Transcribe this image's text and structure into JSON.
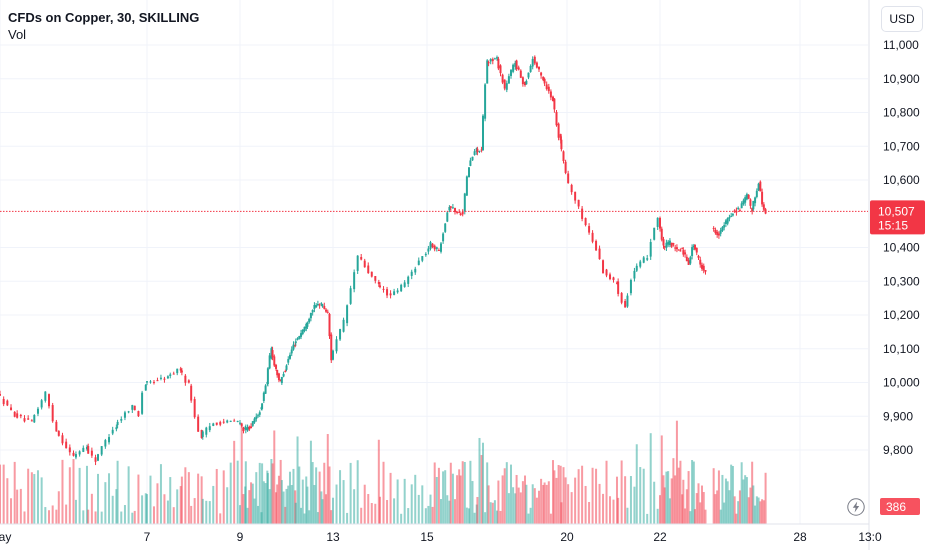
{
  "header": {
    "title": "CFDs on Copper, 30, SKILLING",
    "volume_label": "Vol"
  },
  "currency_button": "USD",
  "colors": {
    "up": "#26a69a",
    "down": "#f23645",
    "grid": "#f0f3fa",
    "text": "#131722",
    "price_line": "#f23645"
  },
  "icons": {
    "replay": "lightning-icon"
  },
  "chart_data": {
    "type": "candlestick",
    "symbol": "CFDs on Copper",
    "interval": "30",
    "source": "SKILLING",
    "currency": "USD",
    "ylim": [
      9700,
      11050
    ],
    "y_ticks": [
      11000,
      10900,
      10800,
      10700,
      10600,
      10400,
      10300,
      10200,
      10100,
      10000,
      9900,
      9800
    ],
    "y_tick_labels": [
      "11,000",
      "10,900",
      "10,800",
      "10,700",
      "10,600",
      "10,400",
      "10,300",
      "10,200",
      "10,100",
      "10,000",
      "9,900",
      "9,800"
    ],
    "x_ticks": [
      {
        "label": "May",
        "day": 4.0
      },
      {
        "label": "7",
        "day": 7.0
      },
      {
        "label": "9",
        "day": 9.0
      },
      {
        "label": "13",
        "day": 13.0
      },
      {
        "label": "15",
        "day": 15.0
      },
      {
        "label": "20",
        "day": 20.0
      },
      {
        "label": "22",
        "day": 22.0
      },
      {
        "label": "28",
        "day": 28.0
      },
      {
        "label": "13:0",
        "day": 29.6
      }
    ],
    "last_price": {
      "value": 10507,
      "label": "10,507",
      "countdown": "15:15"
    },
    "last_volume": {
      "value": 386,
      "label": "386"
    },
    "price_path": [
      [
        4.0,
        9970
      ],
      [
        4.35,
        9905
      ],
      [
        4.7,
        9880
      ],
      [
        5.0,
        9970
      ],
      [
        5.2,
        9860
      ],
      [
        5.55,
        9780
      ],
      [
        5.8,
        9810
      ],
      [
        6.0,
        9770
      ],
      [
        6.4,
        9870
      ],
      [
        6.75,
        9930
      ],
      [
        6.9,
        9905
      ],
      [
        7.0,
        9995
      ],
      [
        7.5,
        10015
      ],
      [
        7.75,
        10040
      ],
      [
        7.95,
        9995
      ],
      [
        8.2,
        9840
      ],
      [
        8.5,
        9880
      ],
      [
        9.0,
        9885
      ],
      [
        9.25,
        9860
      ],
      [
        9.55,
        9870
      ],
      [
        9.95,
        9920
      ],
      [
        10.2,
        10000
      ],
      [
        10.4,
        10100
      ],
      [
        10.6,
        10040
      ],
      [
        10.8,
        10000
      ],
      [
        11.0,
        10040
      ],
      [
        11.4,
        10115
      ],
      [
        11.9,
        10170
      ],
      [
        12.2,
        10220
      ],
      [
        12.55,
        10235
      ],
      [
        12.85,
        10205
      ],
      [
        13.0,
        10070
      ],
      [
        13.3,
        10180
      ],
      [
        13.6,
        10375
      ],
      [
        14.0,
        10290
      ],
      [
        14.3,
        10255
      ],
      [
        14.6,
        10295
      ],
      [
        14.9,
        10360
      ],
      [
        15.2,
        10410
      ],
      [
        15.5,
        10390
      ],
      [
        15.85,
        10525
      ],
      [
        16.2,
        10500
      ],
      [
        16.35,
        10505
      ],
      [
        16.55,
        10640
      ],
      [
        16.8,
        10690
      ],
      [
        17.0,
        10685
      ],
      [
        17.2,
        10950
      ],
      [
        17.55,
        10960
      ],
      [
        17.85,
        10870
      ],
      [
        18.2,
        10950
      ],
      [
        18.55,
        10880
      ],
      [
        18.85,
        10960
      ],
      [
        19.2,
        10900
      ],
      [
        19.55,
        10840
      ],
      [
        19.8,
        10720
      ],
      [
        20.1,
        10590
      ],
      [
        20.4,
        10490
      ],
      [
        20.7,
        10395
      ],
      [
        20.85,
        10330
      ],
      [
        21.1,
        10295
      ],
      [
        21.3,
        10225
      ],
      [
        21.5,
        10330
      ],
      [
        21.8,
        10375
      ],
      [
        22.0,
        10490
      ],
      [
        22.2,
        10400
      ],
      [
        22.5,
        10415
      ],
      [
        22.8,
        10390
      ],
      [
        23.0,
        10395
      ],
      [
        23.3,
        10355
      ],
      [
        23.5,
        10410
      ],
      [
        23.8,
        10350
      ],
      [
        24.0,
        10330
      ],
      [
        24.05,
        null
      ],
      [
        24.3,
        10455
      ],
      [
        24.6,
        10440
      ],
      [
        24.9,
        10475
      ],
      [
        25.2,
        10505
      ],
      [
        25.5,
        10515
      ],
      [
        25.8,
        10555
      ],
      [
        26.0,
        10510
      ],
      [
        26.3,
        10595
      ],
      [
        26.45,
        10530
      ],
      [
        26.55,
        10507
      ]
    ],
    "volume_scale_max": 410
  }
}
